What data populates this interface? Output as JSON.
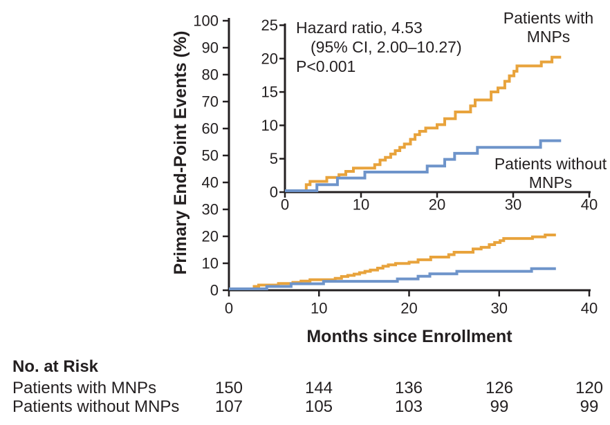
{
  "chart_data": {
    "type": "line",
    "subtype": "kaplan-meier-step",
    "title": "",
    "xlabel": "Months since Enrollment",
    "ylabel": "Primary End-Point Events (%)",
    "xlim": [
      0,
      40
    ],
    "x_ticks": [
      0,
      10,
      20,
      30,
      40
    ],
    "curve_end_month": 36.3,
    "grid": false,
    "main_axis": {
      "ylim": [
        0,
        100
      ],
      "yticks": [
        0,
        10,
        20,
        30,
        40,
        50,
        60,
        70,
        80,
        90,
        100
      ]
    },
    "inset_axis": {
      "ylim": [
        0,
        25
      ],
      "yticks": [
        0,
        5,
        10,
        15,
        20,
        25
      ]
    },
    "annotation": [
      "Hazard ratio, 4.53",
      "(95% CI, 2.00–10.27)",
      "P<0.001"
    ],
    "series": [
      {
        "name": "Patients with MNPs",
        "label_lines": [
          "Patients with",
          "MNPs"
        ],
        "color": "#E8A33C",
        "points": [
          [
            0,
            0
          ],
          [
            2.8,
            0.9
          ],
          [
            3.3,
            1.4
          ],
          [
            5.5,
            2.0
          ],
          [
            7.1,
            2.4
          ],
          [
            8.0,
            2.9
          ],
          [
            9.0,
            3.4
          ],
          [
            11.8,
            3.9
          ],
          [
            12.5,
            4.6
          ],
          [
            13.2,
            5.0
          ],
          [
            13.9,
            5.5
          ],
          [
            14.5,
            6.0
          ],
          [
            15.1,
            6.5
          ],
          [
            15.7,
            7.0
          ],
          [
            16.5,
            7.7
          ],
          [
            17.1,
            8.4
          ],
          [
            17.7,
            8.9
          ],
          [
            18.5,
            9.4
          ],
          [
            20.0,
            9.9
          ],
          [
            21.0,
            10.8
          ],
          [
            22.4,
            11.8
          ],
          [
            24.4,
            12.7
          ],
          [
            25.0,
            13.6
          ],
          [
            27.1,
            14.8
          ],
          [
            28.0,
            15.4
          ],
          [
            28.9,
            16.4
          ],
          [
            29.5,
            17.2
          ],
          [
            30.1,
            17.9
          ],
          [
            30.5,
            18.7
          ],
          [
            33.7,
            19.3
          ],
          [
            35.1,
            20.0
          ]
        ]
      },
      {
        "name": "Patients without MNPs",
        "label_lines": [
          "Patients without",
          "MNPs"
        ],
        "color": "#6E94CA",
        "points": [
          [
            0,
            0
          ],
          [
            4.2,
            0.9
          ],
          [
            6.9,
            1.9
          ],
          [
            10.5,
            2.8
          ],
          [
            18.7,
            3.7
          ],
          [
            21.0,
            4.7
          ],
          [
            22.3,
            5.6
          ],
          [
            25.3,
            6.5
          ],
          [
            33.6,
            7.5
          ]
        ]
      }
    ]
  },
  "risk_table": {
    "title": "No. at Risk",
    "rows": [
      {
        "label": "Patients with MNPs",
        "values": [
          "150",
          "144",
          "136",
          "126",
          "120"
        ]
      },
      {
        "label": "Patients without MNPs",
        "values": [
          "107",
          "105",
          "103",
          "99",
          "99"
        ]
      }
    ]
  },
  "colors": {
    "text": "#231F20",
    "axis": "#231F20",
    "with_mnps": "#E8A33C",
    "without_mnps": "#6E94CA"
  }
}
